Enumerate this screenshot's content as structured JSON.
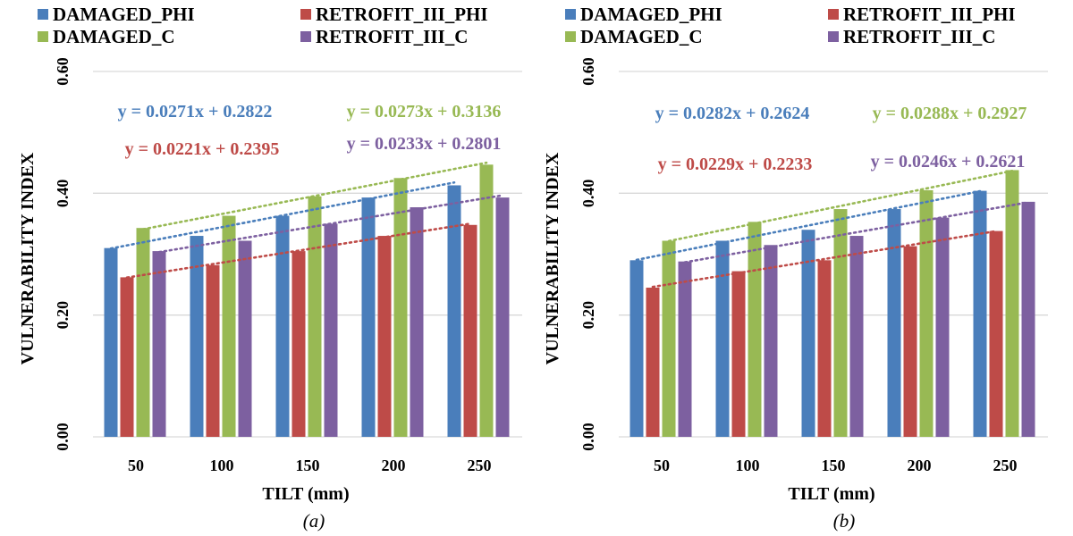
{
  "colors": {
    "DAMAGED_PHI": "#4a7ebb",
    "RETROFIT_III_PHI": "#be4b48",
    "DAMAGED_C": "#98b954",
    "RETROFIT_III_C": "#7d60a0",
    "grid": "#d9d9d9"
  },
  "chart_data": [
    {
      "type": "bar",
      "caption": "(a)",
      "xlabel": "TILT (mm)",
      "ylabel": "VULNERABILITY INDEX",
      "ylim": [
        0,
        0.6
      ],
      "yticks": [
        "0.00",
        "0.20",
        "0.40",
        "0.60"
      ],
      "categories": [
        "50",
        "100",
        "150",
        "200",
        "250"
      ],
      "legend": [
        "DAMAGED_PHI",
        "RETROFIT_III_PHI",
        "DAMAGED_C",
        "RETROFIT_III_C"
      ],
      "series": [
        {
          "name": "DAMAGED_PHI",
          "values": [
            0.31,
            0.33,
            0.363,
            0.393,
            0.413
          ],
          "trend": {
            "slope": 0.0271,
            "intercept": 0.2822,
            "equation": "y = 0.0271x + 0.2822"
          }
        },
        {
          "name": "RETROFIT_III_PHI",
          "values": [
            0.262,
            0.282,
            0.305,
            0.33,
            0.348
          ],
          "trend": {
            "slope": 0.0221,
            "intercept": 0.2395,
            "equation": "y = 0.0221x + 0.2395"
          }
        },
        {
          "name": "DAMAGED_C",
          "values": [
            0.343,
            0.363,
            0.395,
            0.425,
            0.447
          ],
          "trend": {
            "slope": 0.0273,
            "intercept": 0.3136,
            "equation": "y = 0.0273x + 0.3136"
          }
        },
        {
          "name": "RETROFIT_III_C",
          "values": [
            0.305,
            0.322,
            0.35,
            0.377,
            0.393
          ],
          "trend": {
            "slope": 0.0233,
            "intercept": 0.2801,
            "equation": "y = 0.0233x + 0.2801"
          }
        }
      ]
    },
    {
      "type": "bar",
      "caption": "(b)",
      "xlabel": "TILT (mm)",
      "ylabel": "VULNERABILITY INDEX",
      "ylim": [
        0,
        0.6
      ],
      "yticks": [
        "0.00",
        "0.20",
        "0.40",
        "0.60"
      ],
      "categories": [
        "50",
        "100",
        "150",
        "200",
        "250"
      ],
      "legend": [
        "DAMAGED_PHI",
        "RETROFIT_III_PHI",
        "DAMAGED_C",
        "RETROFIT_III_C"
      ],
      "series": [
        {
          "name": "DAMAGED_PHI",
          "values": [
            0.29,
            0.322,
            0.34,
            0.374,
            0.404
          ],
          "trend": {
            "slope": 0.0282,
            "intercept": 0.2624,
            "equation": "y = 0.0282x + 0.2624"
          }
        },
        {
          "name": "RETROFIT_III_PHI",
          "values": [
            0.245,
            0.272,
            0.29,
            0.313,
            0.338
          ],
          "trend": {
            "slope": 0.0229,
            "intercept": 0.2233,
            "equation": "y = 0.0229x + 0.2233"
          }
        },
        {
          "name": "DAMAGED_C",
          "values": [
            0.322,
            0.353,
            0.374,
            0.405,
            0.438
          ],
          "trend": {
            "slope": 0.0288,
            "intercept": 0.2927,
            "equation": "y = 0.0288x + 0.2927"
          }
        },
        {
          "name": "RETROFIT_III_C",
          "values": [
            0.288,
            0.315,
            0.33,
            0.36,
            0.386
          ],
          "trend": {
            "slope": 0.0246,
            "intercept": 0.2621,
            "equation": "y = 0.0246x + 0.2621"
          }
        }
      ]
    }
  ]
}
